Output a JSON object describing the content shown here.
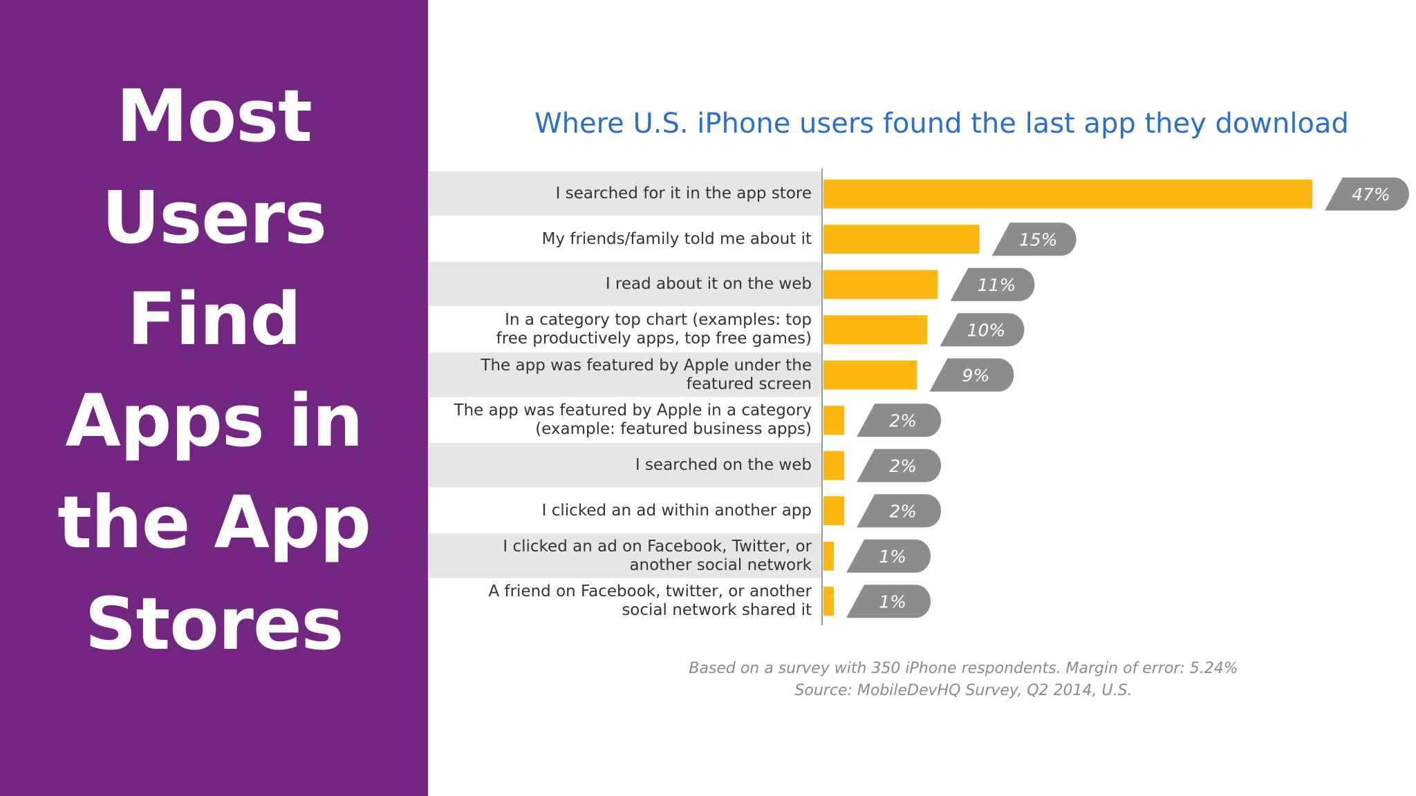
{
  "slide": {
    "title_lines": [
      "Most",
      "Users",
      "Find",
      "Apps in",
      "the App",
      "Stores"
    ],
    "panel_color": "#722581"
  },
  "chart_data": {
    "type": "bar",
    "orientation": "horizontal",
    "title": "Where U.S. iPhone users found the last app they download",
    "categories": [
      "I searched for it in the app store",
      "My friends/family told me about it",
      "I read about it on the web",
      "In a category top chart (examples: top\nfree productively apps, top free games)",
      "The app was featured by Apple under the\nfeatured screen",
      "The app was featured by Apple in a category\n(example: featured business apps)",
      "I searched on the web",
      "I clicked an ad within another app",
      "I clicked an ad on Facebook, Twitter, or\nanother social network",
      "A friend on Facebook, twitter, or another\nsocial network shared it"
    ],
    "values": [
      47,
      15,
      11,
      10,
      9,
      2,
      2,
      2,
      1,
      1
    ],
    "value_labels": [
      "47%",
      "15%",
      "11%",
      "10%",
      "9%",
      "2%",
      "2%",
      "2%",
      "1%",
      "1%"
    ],
    "unit": "%",
    "xlim": [
      0,
      47
    ],
    "grid": false,
    "legend": "none",
    "colors": {
      "bar": "#FDB813",
      "title": "#2A6FD0",
      "label_badge": "#8C8C8C",
      "row_shade": "#E6E6E6"
    },
    "notes": [
      "Based on a survey with 350 iPhone respondents. Margin of error: 5.24%",
      "Source: MobileDevHQ Survey, Q2 2014, U.S."
    ]
  }
}
